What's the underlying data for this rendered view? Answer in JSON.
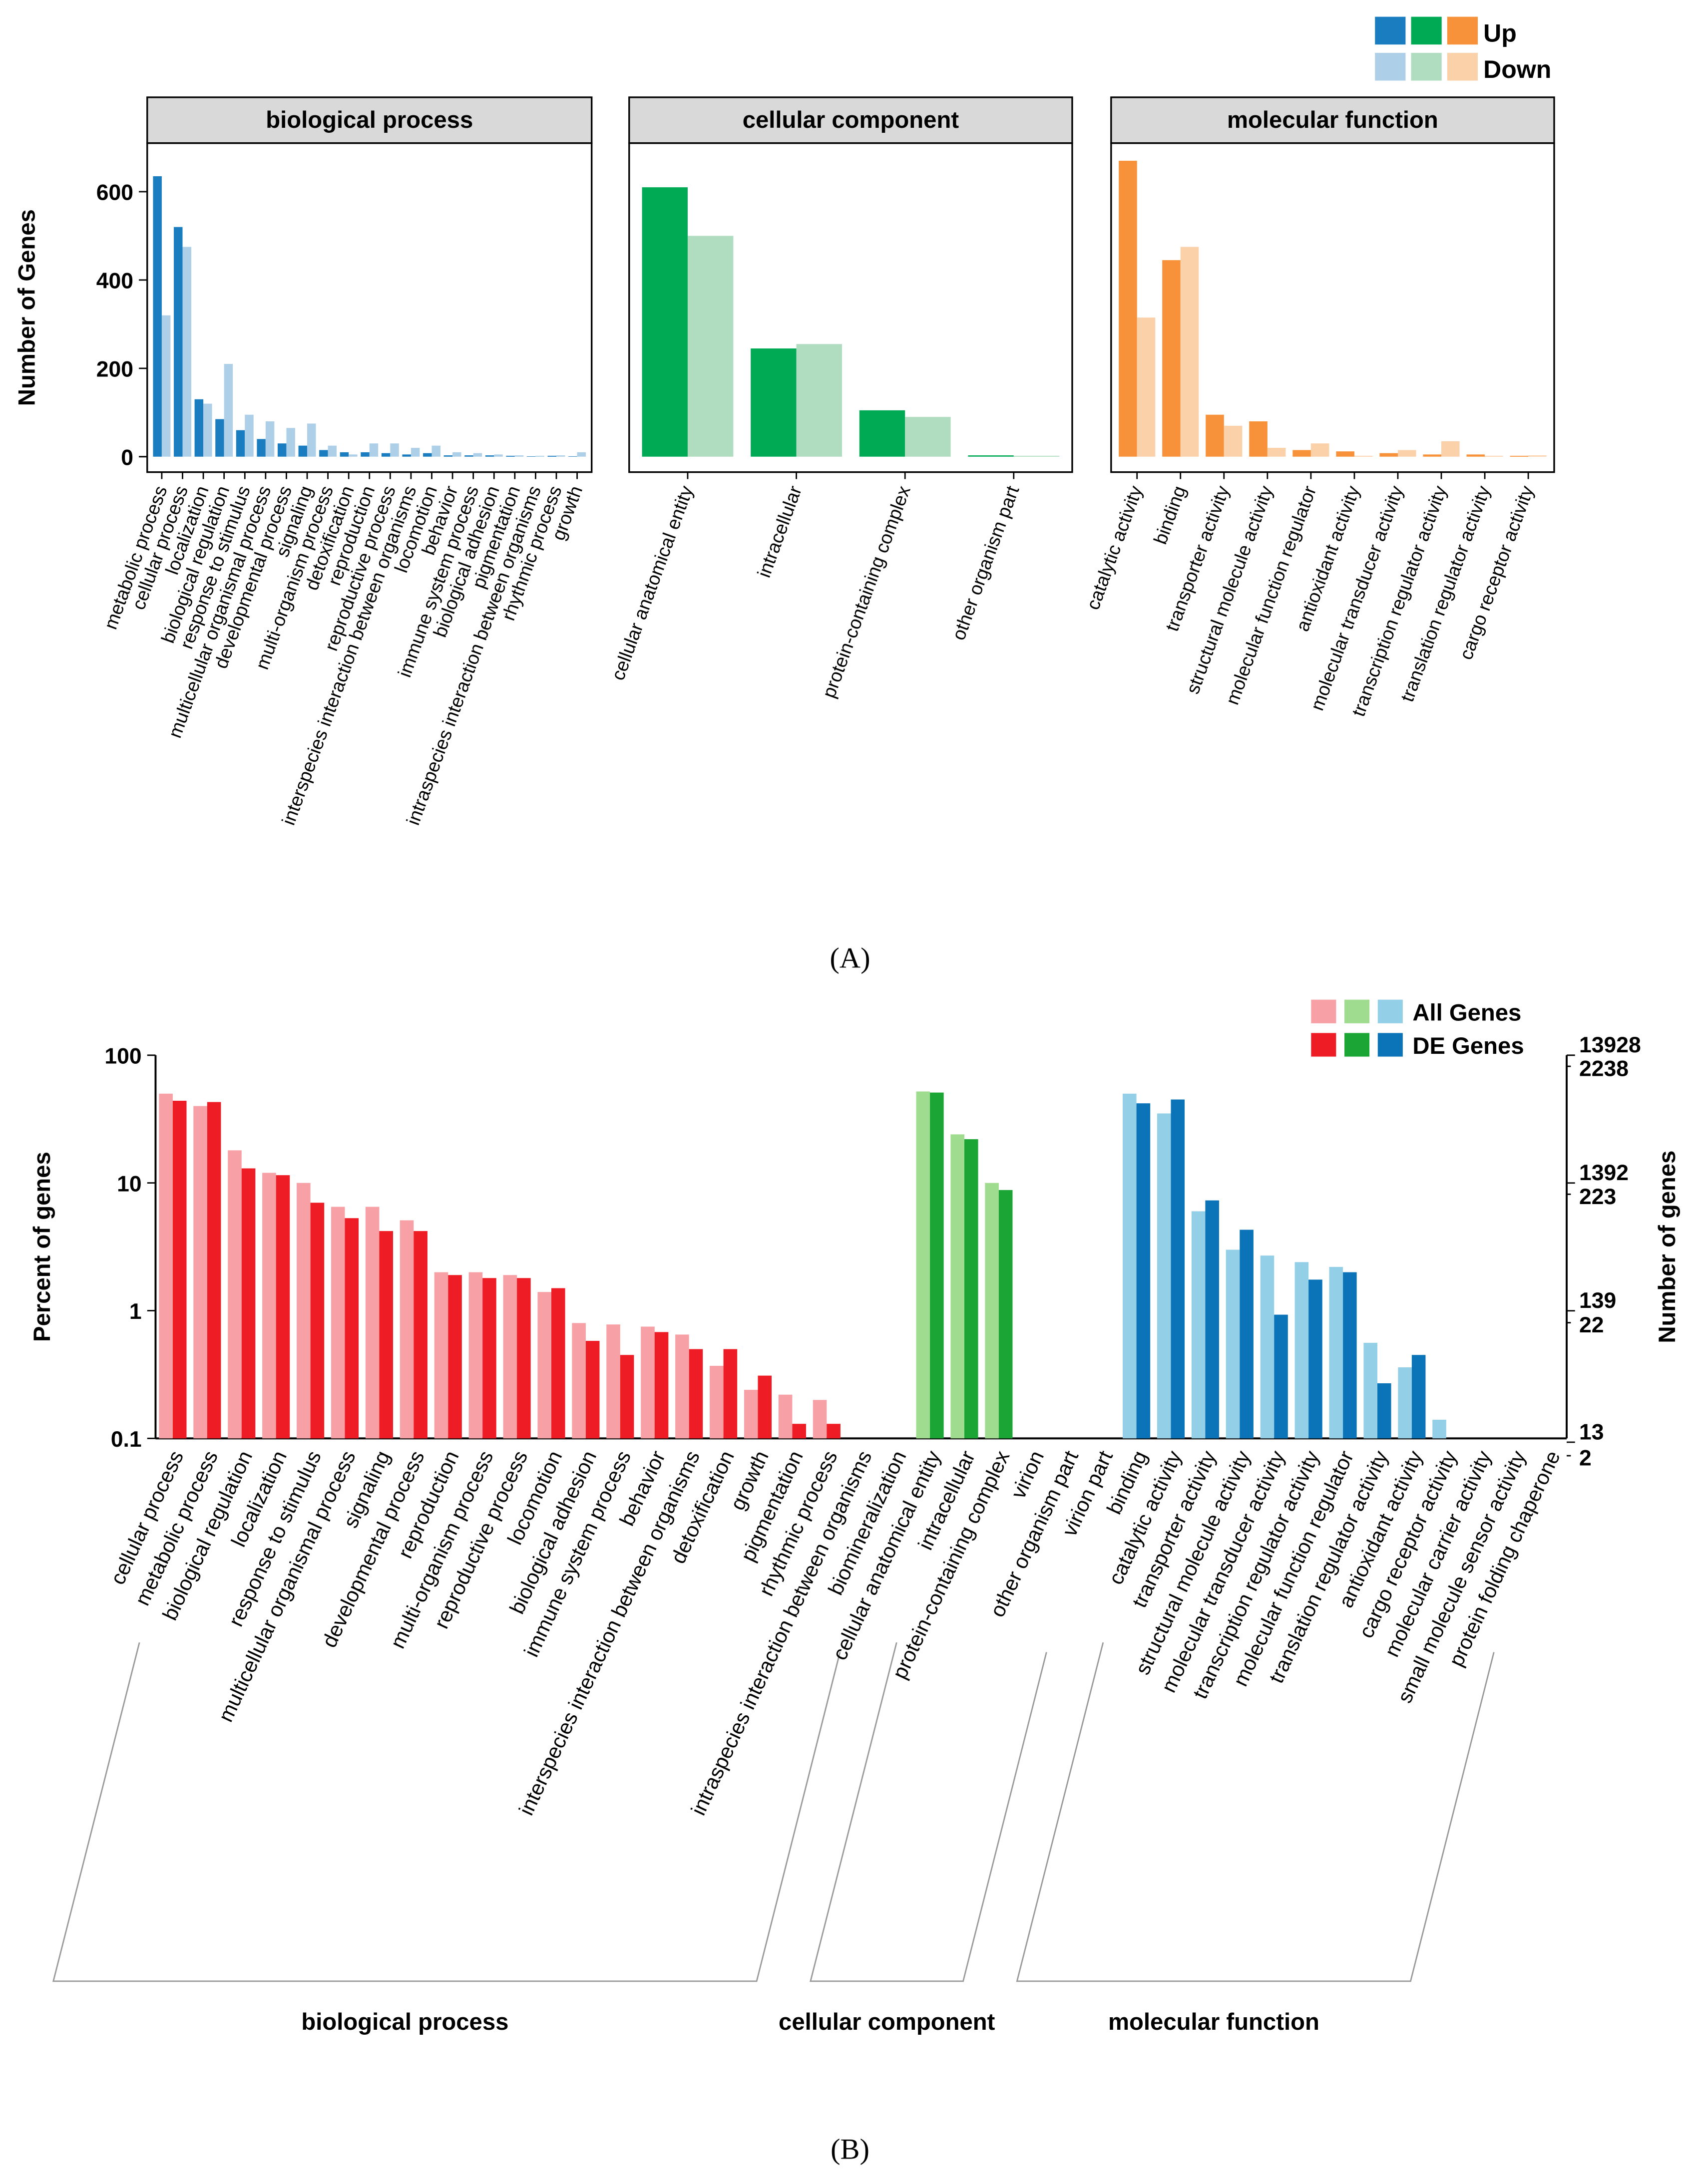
{
  "captions": [
    "(A)",
    "(B)"
  ],
  "chart_data": [
    {
      "type": "bar",
      "title": "biological process",
      "y_label": "Number of Genes",
      "ylim": [
        -35,
        710
      ],
      "yticks": [
        0,
        200,
        400,
        600
      ],
      "categories": [
        "metabolic process",
        "cellular process",
        "localization",
        "biological regulation",
        "response to stimulus",
        "multicellular organismal process",
        "developmental process",
        "signaling",
        "multi-organism process",
        "detoxification",
        "reproduction",
        "reproductive process",
        "interspecies interaction between organisms",
        "locomotion",
        "behavior",
        "immune system process",
        "biological adhesion",
        "pigmentation",
        "intraspecies interaction between organisms",
        "rhythmic process",
        "growth"
      ],
      "series": [
        {
          "color": "#1a7dc0",
          "values": [
            635,
            520,
            130,
            85,
            60,
            40,
            30,
            25,
            15,
            10,
            10,
            8,
            5,
            8,
            3,
            3,
            3,
            2,
            1,
            2,
            1
          ]
        },
        {
          "color": "#aecfe8",
          "values": [
            320,
            475,
            120,
            210,
            95,
            80,
            65,
            75,
            25,
            5,
            30,
            30,
            20,
            25,
            10,
            8,
            5,
            3,
            2,
            3,
            10
          ]
        }
      ]
    },
    {
      "type": "bar",
      "title": "cellular component",
      "ylim": [
        -35,
        710
      ],
      "categories": [
        "cellular anatomical entity",
        "intracellular",
        "protein-containing complex",
        "other organism part"
      ],
      "series": [
        {
          "color": "#00aa55",
          "values": [
            610,
            245,
            105,
            3
          ]
        },
        {
          "color": "#b0dcbf",
          "values": [
            500,
            255,
            90,
            2
          ]
        }
      ]
    },
    {
      "type": "bar",
      "title": "molecular function",
      "ylim": [
        -35,
        710
      ],
      "categories": [
        "catalytic activity",
        "binding",
        "transporter activity",
        "structural molecule activity",
        "molecular function regulator",
        "antioxidant activity",
        "molecular transducer activity",
        "transcription regulator activity",
        "translation regulator activity",
        "cargo receptor activity"
      ],
      "series": [
        {
          "name": "Up",
          "color": "#f7923a",
          "values": [
            670,
            445,
            95,
            80,
            15,
            12,
            8,
            5,
            5,
            2
          ]
        },
        {
          "name": "Down",
          "color": "#fbd1aa",
          "values": [
            315,
            475,
            70,
            20,
            30,
            2,
            15,
            35,
            2,
            3
          ]
        }
      ]
    },
    {
      "type": "bar",
      "log_scale": true,
      "y_label": "Percent of genes",
      "y2_label": "Number of genes",
      "ylim": [
        0.1,
        100
      ],
      "yticks": [
        0.1,
        1,
        10,
        100
      ],
      "y2lim": [
        13.928,
        13928
      ],
      "y2ticks": [
        13928,
        1392,
        139,
        13
      ],
      "y3lim": [
        2.238,
        2238
      ],
      "y3ticks": [
        2238,
        223,
        22,
        2
      ],
      "legend": [
        "All Genes",
        "DE Genes"
      ],
      "groups": [
        {
          "name": "biological process",
          "categories": [
            "cellular process",
            "metabolic process",
            "biological regulation",
            "localization",
            "response to stimulus",
            "multicellular organismal process",
            "signaling",
            "developmental process",
            "reproduction",
            "multi-organism process",
            "reproductive process",
            "locomotion",
            "biological adhesion",
            "immune system process",
            "behavior",
            "interspecies interaction between organisms",
            "detoxification",
            "growth",
            "pigmentation",
            "rhythmic process",
            "intraspecies interaction between organisms",
            "biomineralization"
          ],
          "series": [
            {
              "color": "#f7a0a6",
              "values": [
                50,
                40,
                18,
                12,
                10,
                6.5,
                6.5,
                5.1,
                2.0,
                2.0,
                1.9,
                1.4,
                0.8,
                0.78,
                0.75,
                0.65,
                0.37,
                0.24,
                0.22,
                0.2,
                null,
                null
              ]
            },
            {
              "color": "#ee1c25",
              "values": [
                44,
                43,
                13,
                11.5,
                7,
                5.3,
                4.2,
                4.2,
                1.9,
                1.8,
                1.8,
                1.5,
                0.58,
                0.45,
                0.68,
                0.5,
                0.5,
                0.31,
                0.13,
                0.13,
                null,
                null
              ]
            }
          ]
        },
        {
          "name": "cellular component",
          "categories": [
            "cellular anatomical entity",
            "intracellular",
            "protein-containing complex",
            "virion",
            "other organism part",
            "virion part"
          ],
          "series": [
            {
              "color": "#9fdc8f",
              "values": [
                52,
                24,
                10,
                null,
                null,
                null
              ]
            },
            {
              "color": "#1aa535",
              "values": [
                51,
                22,
                8.8,
                null,
                null,
                null
              ]
            }
          ]
        },
        {
          "name": "molecular function",
          "categories": [
            "binding",
            "catalytic activity",
            "transporter activity",
            "structural molecule activity",
            "molecular transducer activity",
            "transcription regulator activity",
            "molecular function regulator",
            "translation regulator activity",
            "antioxidant activity",
            "cargo receptor activity",
            "molecular carrier activity",
            "small molecule sensor activity",
            "protein folding chaperone"
          ],
          "series": [
            {
              "color": "#94cfe8",
              "values": [
                50,
                35,
                6,
                3,
                2.7,
                2.4,
                2.2,
                0.56,
                0.36,
                0.14,
                null,
                null,
                null
              ]
            },
            {
              "color": "#0b73b7",
              "values": [
                42,
                45,
                7.3,
                4.3,
                0.93,
                1.75,
                2.0,
                0.27,
                0.45,
                null,
                null,
                null,
                null
              ]
            }
          ]
        }
      ]
    }
  ]
}
